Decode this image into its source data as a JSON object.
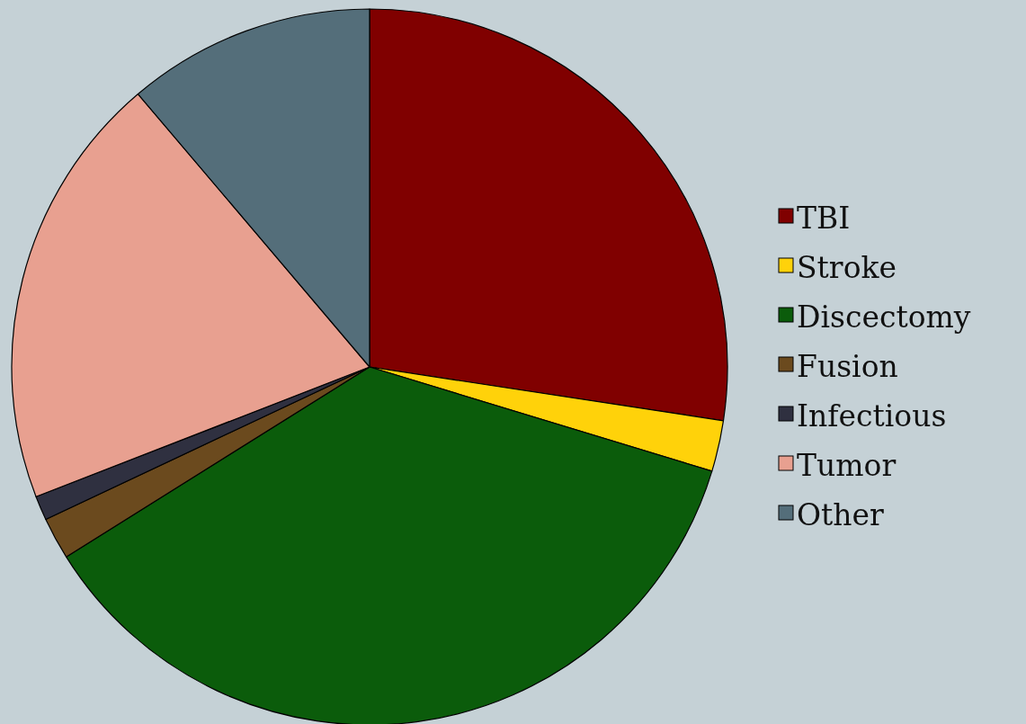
{
  "chart_data": {
    "type": "pie",
    "categories": [
      "TBI",
      "Stroke",
      "Discectomy",
      "Fusion",
      "Infectious",
      "Tumor",
      "Other"
    ],
    "values": [
      27.4,
      2.3,
      36.4,
      1.9,
      1.1,
      19.7,
      11.2
    ],
    "colors": [
      "#800000",
      "#ffd20a",
      "#0b5c0b",
      "#6b4a1e",
      "#2f3040",
      "#e8a090",
      "#546e7a"
    ],
    "legend": "right"
  }
}
